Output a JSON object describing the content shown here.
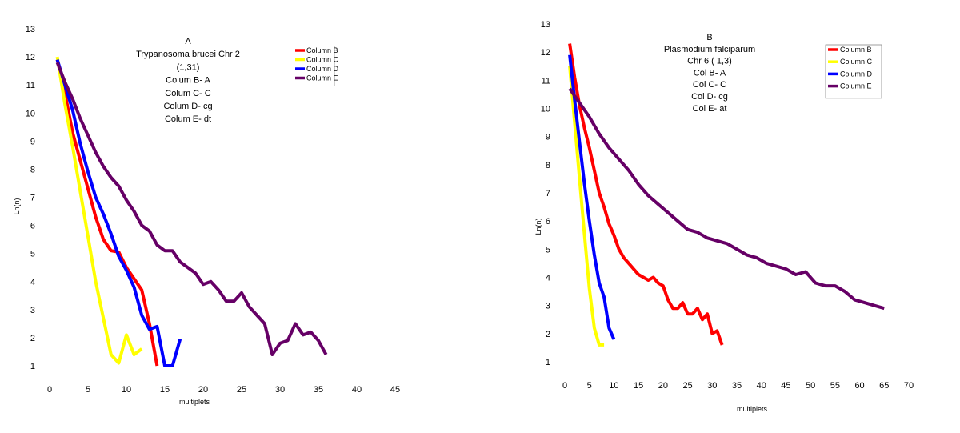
{
  "chart_data": [
    {
      "type": "line",
      "panel": "A",
      "title_lines": [
        "A",
        "Trypanosoma brucei Chr 2",
        "(1,31)",
        "Colum B- A",
        "Colum C- C",
        "Colum D- cg",
        "Colum E- dt"
      ],
      "xlabel": "multiplets",
      "ylabel": "Ln(n)",
      "xlim": [
        0,
        45
      ],
      "ylim": [
        1,
        13
      ],
      "xticks": [
        0,
        5,
        10,
        15,
        20,
        25,
        30,
        35,
        40,
        45
      ],
      "yticks": [
        1,
        2,
        3,
        4,
        5,
        6,
        7,
        8,
        9,
        10,
        11,
        12,
        13
      ],
      "legend_position": "top-right",
      "series": [
        {
          "name": "Column B",
          "color": "#ff0000",
          "x": [
            1,
            2,
            3,
            4,
            5,
            6,
            7,
            8,
            9,
            10,
            11,
            12,
            13,
            14
          ],
          "y": [
            11.9,
            10.7,
            9.3,
            8.3,
            7.3,
            6.3,
            5.5,
            5.1,
            5.05,
            4.5,
            4.1,
            3.7,
            2.5,
            1.0
          ]
        },
        {
          "name": "Column C",
          "color": "#ffff00",
          "x": [
            1,
            2,
            3,
            4,
            5,
            6,
            7,
            8,
            9,
            10,
            11,
            12
          ],
          "y": [
            12.0,
            10.3,
            8.8,
            7.2,
            5.6,
            4.0,
            2.7,
            1.4,
            1.1,
            2.1,
            1.4,
            1.6
          ]
        },
        {
          "name": "Column D",
          "color": "#0000ff",
          "x": [
            1,
            2,
            3,
            4,
            5,
            6,
            7,
            8,
            9,
            10,
            11,
            12,
            13,
            14,
            15,
            16,
            17
          ],
          "y": [
            11.9,
            11.0,
            10.1,
            8.9,
            7.9,
            7.0,
            6.4,
            5.7,
            4.9,
            4.4,
            3.8,
            2.8,
            2.3,
            2.4,
            1.0,
            1.0,
            1.95
          ]
        },
        {
          "name": "Column E",
          "color": "#660066",
          "x": [
            1,
            2,
            3,
            4,
            5,
            6,
            7,
            8,
            9,
            10,
            11,
            12,
            13,
            14,
            15,
            16,
            17,
            18,
            19,
            20,
            21,
            22,
            23,
            24,
            25,
            26,
            27,
            28,
            29,
            30,
            31,
            32,
            33,
            34,
            35,
            36
          ],
          "y": [
            11.8,
            11.1,
            10.5,
            9.8,
            9.2,
            8.6,
            8.1,
            7.7,
            7.4,
            6.9,
            6.5,
            6.0,
            5.8,
            5.3,
            5.1,
            5.1,
            4.7,
            4.5,
            4.3,
            3.9,
            4.0,
            3.7,
            3.3,
            3.3,
            3.6,
            3.1,
            2.8,
            2.5,
            1.4,
            1.8,
            1.9,
            2.5,
            2.1,
            2.2,
            1.9,
            1.4
          ]
        }
      ]
    },
    {
      "type": "line",
      "panel": "B",
      "title_lines": [
        "B",
        "Plasmodium falciparum",
        "Chr 6 ( 1,3)",
        "Col B- A",
        "Col C- C",
        "Col D- cg",
        "Col E- at"
      ],
      "xlabel": "multiplets",
      "ylabel": "Ln(n)",
      "xlim": [
        0,
        70
      ],
      "ylim": [
        1,
        13
      ],
      "xticks": [
        0,
        5,
        10,
        15,
        20,
        25,
        30,
        35,
        40,
        45,
        50,
        55,
        60,
        65,
        70
      ],
      "yticks": [
        1,
        2,
        3,
        4,
        5,
        6,
        7,
        8,
        9,
        10,
        11,
        12,
        13
      ],
      "legend_position": "top-right",
      "series": [
        {
          "name": "Column B",
          "color": "#ff0000",
          "x": [
            1,
            2,
            3,
            4,
            5,
            6,
            7,
            8,
            9,
            10,
            11,
            12,
            13,
            14,
            15,
            16,
            17,
            18,
            19,
            20,
            21,
            22,
            23,
            24,
            25,
            26,
            27,
            28,
            29,
            30,
            31,
            32
          ],
          "y": [
            12.3,
            11.1,
            10.1,
            9.3,
            8.6,
            7.8,
            7.0,
            6.5,
            5.9,
            5.5,
            5.0,
            4.7,
            4.5,
            4.3,
            4.1,
            4.0,
            3.9,
            4.0,
            3.8,
            3.7,
            3.2,
            2.9,
            2.9,
            3.1,
            2.7,
            2.7,
            2.9,
            2.5,
            2.7,
            2.0,
            2.1,
            1.6
          ]
        },
        {
          "name": "Column C",
          "color": "#ffff00",
          "x": [
            1,
            2,
            3,
            4,
            5,
            6,
            7,
            8
          ],
          "y": [
            11.5,
            9.5,
            7.5,
            5.5,
            3.6,
            2.2,
            1.6,
            1.6
          ]
        },
        {
          "name": "Column D",
          "color": "#0000ff",
          "x": [
            1,
            2,
            3,
            4,
            5,
            6,
            7,
            8,
            9,
            10
          ],
          "y": [
            11.9,
            10.3,
            8.8,
            7.3,
            6.0,
            4.8,
            3.8,
            3.3,
            2.2,
            1.8
          ]
        },
        {
          "name": "Column E",
          "color": "#660066",
          "x": [
            1,
            3,
            5,
            7,
            9,
            11,
            13,
            15,
            17,
            19,
            21,
            23,
            25,
            27,
            29,
            31,
            33,
            35,
            37,
            39,
            41,
            43,
            45,
            47,
            49,
            51,
            53,
            55,
            57,
            59,
            61,
            63,
            65
          ],
          "y": [
            10.7,
            10.2,
            9.7,
            9.1,
            8.6,
            8.2,
            7.8,
            7.3,
            6.9,
            6.6,
            6.3,
            6.0,
            5.7,
            5.6,
            5.4,
            5.3,
            5.2,
            5.0,
            4.8,
            4.7,
            4.5,
            4.4,
            4.3,
            4.1,
            4.2,
            3.8,
            3.7,
            3.7,
            3.5,
            3.2,
            3.1,
            3.0,
            2.9
          ]
        }
      ]
    }
  ]
}
